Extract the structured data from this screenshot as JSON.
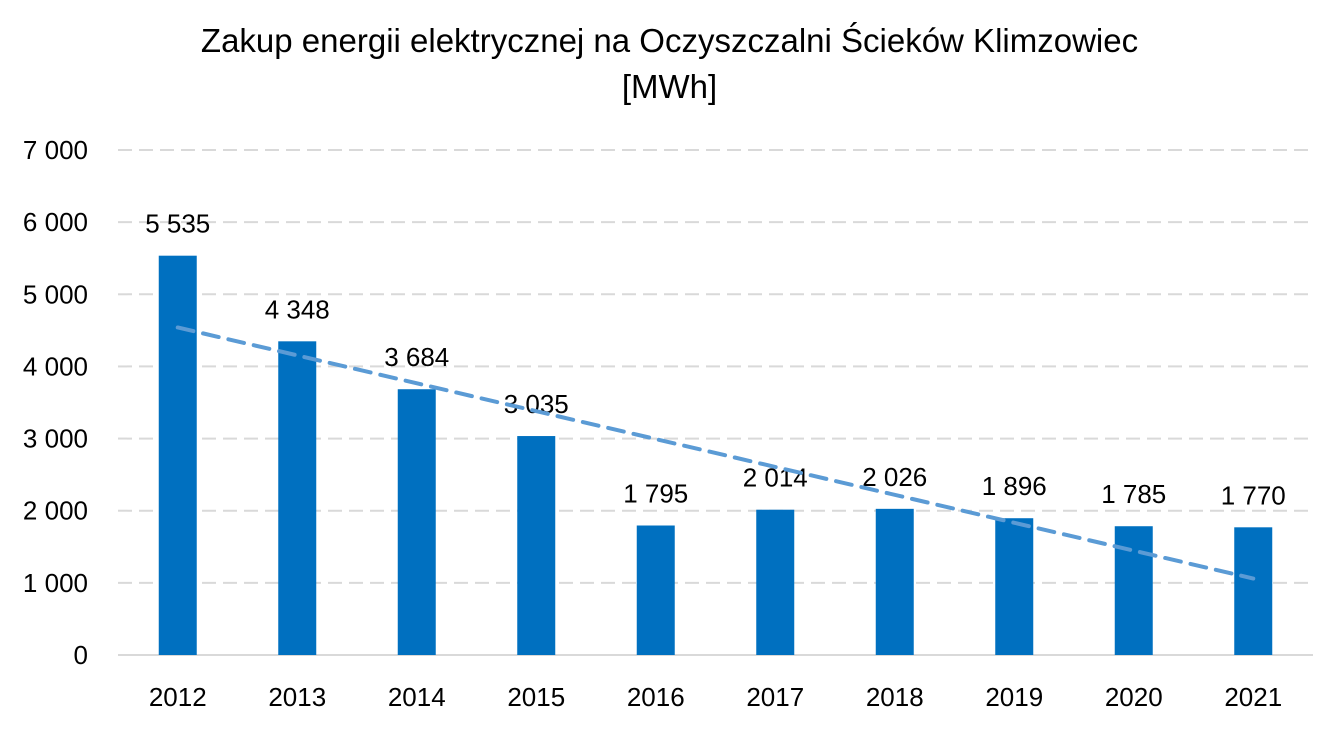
{
  "chart_data": {
    "type": "bar",
    "title_line1": "Zakup energii elektrycznej na Oczyszczalni Ścieków Klimzowiec",
    "title_line2": "[MWh]",
    "categories": [
      "2012",
      "2013",
      "2014",
      "2015",
      "2016",
      "2017",
      "2018",
      "2019",
      "2020",
      "2021"
    ],
    "values": [
      5535,
      4348,
      3684,
      3035,
      1795,
      2014,
      2026,
      1896,
      1785,
      1770
    ],
    "value_labels": [
      "5 535",
      "4 348",
      "3 684",
      "3 035",
      "1 795",
      "2 014",
      "2 026",
      "1 896",
      "1 785",
      "1 770"
    ],
    "ylim": [
      0,
      7000
    ],
    "yticks": [
      0,
      1000,
      2000,
      3000,
      4000,
      5000,
      6000,
      7000
    ],
    "ytick_labels": [
      "0",
      "1 000",
      "2 000",
      "3 000",
      "4 000",
      "5 000",
      "6 000",
      "7 000"
    ],
    "xlabel": "",
    "ylabel": "",
    "grid": true,
    "trendline": {
      "type": "linear",
      "start_value": 4540,
      "end_value": 1060
    },
    "colors": {
      "bar": "#0070C0",
      "trendline": "#5B9BD5",
      "grid": "#D9D9D9",
      "axis": "#D9D9D9"
    }
  }
}
